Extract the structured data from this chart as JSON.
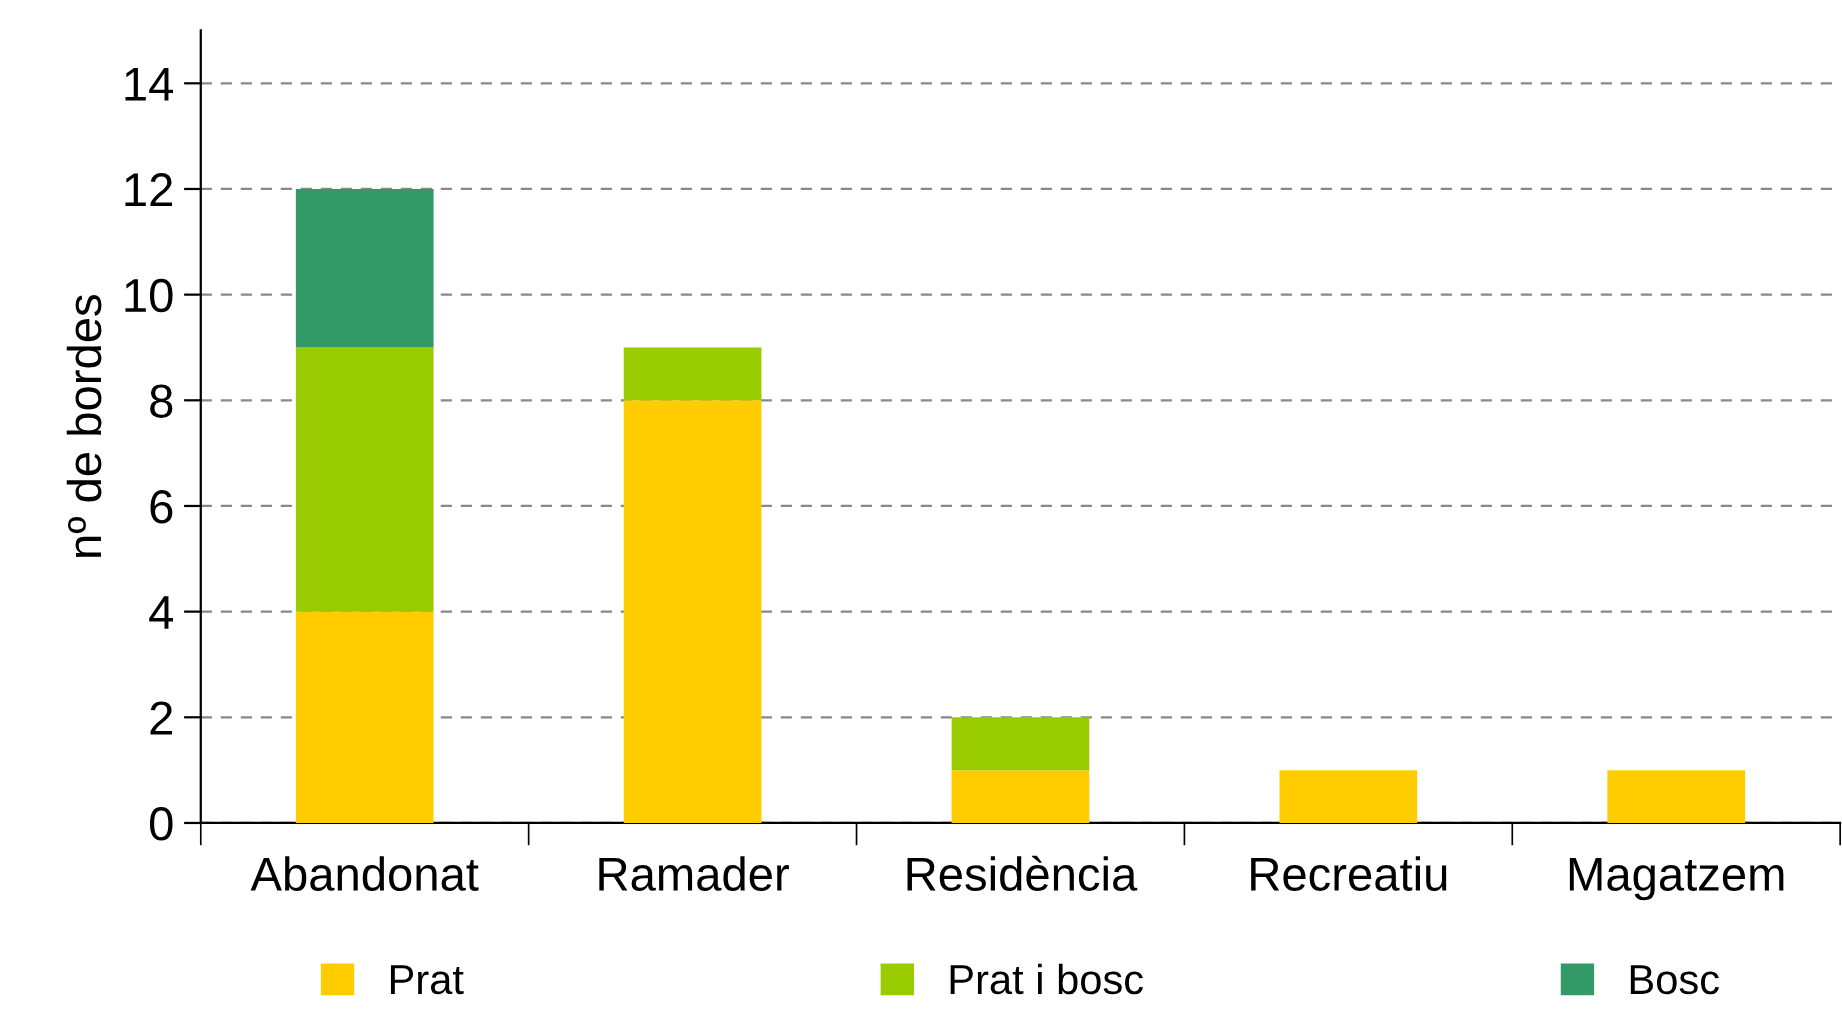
{
  "chart_data": {
    "type": "bar",
    "stacked": true,
    "ylabel": "nº de bordes",
    "categories": [
      "Abandonat",
      "Ramader",
      "Residència",
      "Recreatiu",
      "Magatzem"
    ],
    "series": [
      {
        "name": "Prat",
        "color": "#ffcc00",
        "values": [
          4,
          8,
          1,
          1,
          1
        ]
      },
      {
        "name": "Prat i bosc",
        "color": "#99cc00",
        "values": [
          5,
          1,
          1,
          0,
          0
        ]
      },
      {
        "name": "Bosc",
        "color": "#339966",
        "values": [
          3,
          0,
          0,
          0,
          0
        ]
      }
    ],
    "ylim": [
      0,
      15
    ],
    "yticks": [
      0,
      2,
      4,
      6,
      8,
      10,
      12,
      14
    ],
    "grid": "y",
    "legend": "bottom"
  }
}
